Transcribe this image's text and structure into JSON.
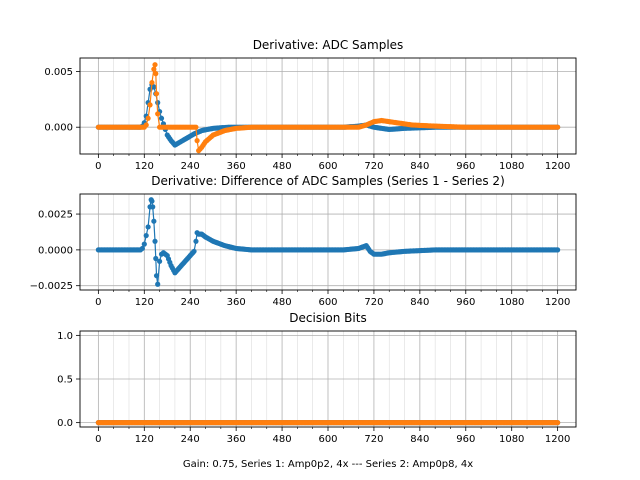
{
  "chart_data": [
    {
      "type": "scatter",
      "title": "Derivative: ADC Samples",
      "xlim": [
        -48,
        1248
      ],
      "ylim": [
        -0.0024,
        0.0062
      ],
      "xticks": [
        0,
        120,
        240,
        360,
        480,
        600,
        720,
        840,
        960,
        1080,
        1200
      ],
      "xtick_labels": [
        "0",
        "120",
        "240",
        "360",
        "480",
        "600",
        "720",
        "840",
        "960",
        "1080",
        "1200"
      ],
      "yticks": [
        0.0,
        0.005
      ],
      "ytick_labels": [
        "0.000",
        "0.005"
      ],
      "grid": true,
      "series": [
        {
          "color": "#1f77b4",
          "x": [
            0,
            20,
            40,
            60,
            80,
            100,
            110,
            115,
            120,
            125,
            130,
            135,
            140,
            145,
            150,
            155,
            160,
            165,
            170,
            175,
            180,
            190,
            200,
            210,
            230,
            250,
            270,
            300,
            340,
            400,
            480,
            560,
            640,
            680,
            700,
            720,
            740,
            760,
            800,
            880,
            960,
            1040,
            1120,
            1200
          ],
          "y": [
            0.0,
            0.0,
            0.0,
            0.0,
            0.0,
            0.0,
            0.0,
            0.0001,
            0.0004,
            0.001,
            0.0022,
            0.0034,
            0.0038,
            0.0036,
            0.003,
            0.0022,
            0.0014,
            0.0008,
            0.0003,
            -0.0002,
            -0.0007,
            -0.0012,
            -0.0016,
            -0.0014,
            -0.001,
            -0.0006,
            -0.0003,
            -0.0001,
            0.0,
            0.0,
            0.0,
            0.0,
            0.0,
            0.0001,
            0.0002,
            0.0,
            -0.0001,
            -0.0002,
            -0.0001,
            0.0,
            0.0,
            0.0,
            0.0,
            0.0
          ]
        },
        {
          "color": "#ff7f0e",
          "x": [
            0,
            40,
            80,
            110,
            120,
            125,
            130,
            135,
            140,
            145,
            148,
            150,
            152,
            155,
            160,
            180,
            200,
            230,
            255,
            258,
            262,
            270,
            280,
            300,
            330,
            360,
            400,
            480,
            600,
            680,
            700,
            720,
            740,
            760,
            780,
            820,
            880,
            960,
            1040,
            1120,
            1200
          ],
          "y": [
            0.0,
            0.0,
            0.0,
            0.0,
            0.0,
            0.0002,
            0.0008,
            0.002,
            0.004,
            0.0052,
            0.0056,
            0.0048,
            0.003,
            0.0012,
            0.0,
            0.0,
            0.0,
            0.0,
            0.0,
            -0.0012,
            -0.0021,
            -0.0018,
            -0.0013,
            -0.0007,
            -0.0003,
            -0.0001,
            0.0,
            0.0,
            0.0,
            0.0,
            0.0002,
            0.0005,
            0.0006,
            0.0005,
            0.0004,
            0.0002,
            0.0001,
            0.0,
            0.0,
            0.0,
            0.0
          ]
        }
      ]
    },
    {
      "type": "scatter",
      "title": "Derivative: Difference of ADC Samples (Series 1 - Series 2)",
      "xlim": [
        -48,
        1248
      ],
      "ylim": [
        -0.0028,
        0.0039
      ],
      "xticks": [
        0,
        120,
        240,
        360,
        480,
        600,
        720,
        840,
        960,
        1080,
        1200
      ],
      "xtick_labels": [
        "0",
        "120",
        "240",
        "360",
        "480",
        "600",
        "720",
        "840",
        "960",
        "1080",
        "1200"
      ],
      "yticks": [
        -0.0025,
        0.0,
        0.0025
      ],
      "ytick_labels": [
        "−0.0025",
        "0.0000",
        "0.0025"
      ],
      "grid": true,
      "series": [
        {
          "color": "#1f77b4",
          "x": [
            0,
            40,
            80,
            110,
            115,
            120,
            125,
            130,
            135,
            138,
            140,
            142,
            145,
            148,
            150,
            152,
            155,
            160,
            165,
            170,
            180,
            190,
            200,
            210,
            220,
            230,
            240,
            250,
            255,
            258,
            262,
            270,
            280,
            300,
            330,
            360,
            400,
            480,
            560,
            640,
            680,
            690,
            700,
            710,
            720,
            740,
            760,
            800,
            880,
            960,
            1040,
            1120,
            1200
          ],
          "y": [
            0.0,
            0.0,
            0.0,
            0.0,
            0.0001,
            0.0004,
            0.001,
            0.0016,
            0.003,
            0.0035,
            0.0034,
            0.003,
            0.002,
            0.0006,
            -0.0006,
            -0.0018,
            -0.0024,
            -0.0008,
            -0.0003,
            -0.0002,
            -0.0004,
            -0.0011,
            -0.0016,
            -0.0013,
            -0.001,
            -0.0007,
            -0.0004,
            -0.0001,
            0.0006,
            0.0012,
            0.0011,
            0.0011,
            0.0009,
            0.0006,
            0.0003,
            0.0001,
            0.0,
            0.0,
            0.0,
            0.0,
            0.0001,
            0.0002,
            0.0003,
            -0.0001,
            -0.0003,
            -0.0003,
            -0.0002,
            -0.0001,
            0.0,
            0.0,
            0.0,
            0.0,
            0.0
          ]
        }
      ]
    },
    {
      "type": "scatter",
      "title": "Decision Bits",
      "xlabel": "Gain: 0.75, Series 1: Amp0p2, 4x --- Series 2: Amp0p8, 4x",
      "xlim": [
        -48,
        1248
      ],
      "ylim": [
        -0.05,
        1.05
      ],
      "xticks": [
        0,
        120,
        240,
        360,
        480,
        600,
        720,
        840,
        960,
        1080,
        1200
      ],
      "xtick_labels": [
        "0",
        "120",
        "240",
        "360",
        "480",
        "600",
        "720",
        "840",
        "960",
        "1080",
        "1200"
      ],
      "yticks": [
        0.0,
        0.5,
        1.0
      ],
      "ytick_labels": [
        "0.0",
        "0.5",
        "1.0"
      ],
      "grid": true,
      "series": [
        {
          "color": "#1f77b4",
          "x": [
            0,
            1200
          ],
          "y": [
            0.0,
            0.0
          ]
        },
        {
          "color": "#ff7f0e",
          "x": [
            0,
            1200
          ],
          "y": [
            0.0,
            0.0
          ]
        }
      ]
    }
  ]
}
